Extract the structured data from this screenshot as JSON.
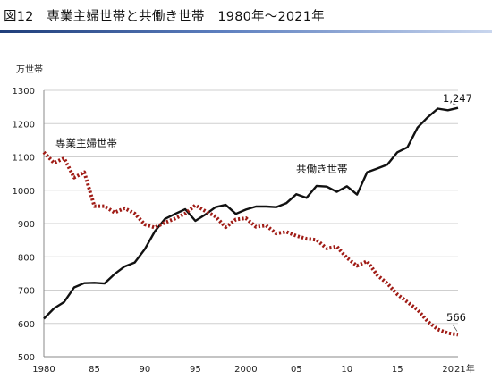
{
  "title": "図12　専業主婦世帯と共働き世帯　1980年～2021年",
  "chart_data": {
    "type": "line",
    "ylabel": "万世帯",
    "ylim": [
      500,
      1300
    ],
    "yticks": [
      "500",
      "600",
      "700",
      "800",
      "900",
      "1000",
      "1100",
      "1200",
      "1300"
    ],
    "xlim": [
      1980,
      2021
    ],
    "xticks": [
      {
        "x": 1980,
        "label": "1980"
      },
      {
        "x": 1985,
        "label": "85"
      },
      {
        "x": 1990,
        "label": "90"
      },
      {
        "x": 1995,
        "label": "95"
      },
      {
        "x": 2000,
        "label": "2000"
      },
      {
        "x": 2005,
        "label": "05"
      },
      {
        "x": 2010,
        "label": "10"
      },
      {
        "x": 2015,
        "label": "15"
      },
      {
        "x": 2020,
        "label": "20"
      },
      {
        "x": 2021,
        "label": "21年"
      }
    ],
    "x": [
      1980,
      1981,
      1982,
      1983,
      1984,
      1985,
      1986,
      1987,
      1988,
      1989,
      1990,
      1991,
      1992,
      1993,
      1994,
      1995,
      1996,
      1997,
      1998,
      1999,
      2000,
      2001,
      2002,
      2003,
      2004,
      2005,
      2006,
      2007,
      2008,
      2009,
      2010,
      2011,
      2012,
      2013,
      2014,
      2015,
      2016,
      2017,
      2018,
      2019,
      2020,
      2021
    ],
    "series": [
      {
        "name": "共働き世帯",
        "color": "#111111",
        "style": "solid",
        "values": [
          614,
          645,
          664,
          708,
          721,
          722,
          720,
          748,
          771,
          783,
          823,
          877,
          914,
          929,
          943,
          908,
          927,
          949,
          956,
          929,
          942,
          951,
          951,
          949,
          961,
          988,
          977,
          1013,
          1011,
          995,
          1012,
          987,
          1054,
          1065,
          1077,
          1114,
          1129,
          1188,
          1219,
          1245,
          1240,
          1247
        ]
      },
      {
        "name": "専業主婦世帯",
        "color": "#a01c16",
        "style": "dotted",
        "values": [
          1114,
          1082,
          1096,
          1038,
          1054,
          952,
          952,
          933,
          946,
          930,
          897,
          888,
          903,
          915,
          930,
          955,
          937,
          921,
          889,
          912,
          916,
          890,
          894,
          870,
          875,
          863,
          854,
          851,
          825,
          831,
          797,
          773,
          787,
          745,
          720,
          687,
          664,
          641,
          606,
          582,
          571,
          566
        ]
      }
    ],
    "annotations": [
      {
        "text": "専業主婦世帯"
      },
      {
        "text": "共働き世帯"
      },
      {
        "text": "1,247"
      },
      {
        "text": "566"
      }
    ]
  }
}
